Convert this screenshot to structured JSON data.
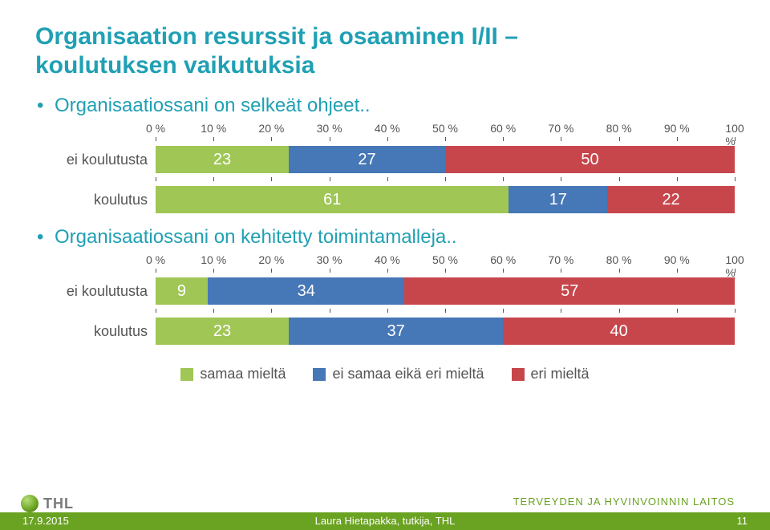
{
  "title_color": "#20a0b4",
  "bullet_color": "#20a0b4",
  "title_line1": "Organisaation resurssit ja osaaminen I/II –",
  "title_line2": "koulutuksen vaikutuksia",
  "chart1": {
    "bullet": "Organisaatiossani on selkeät ohjeet..",
    "ticks": [
      "0 %",
      "10 %",
      "20 %",
      "30 %",
      "40 %",
      "50 %",
      "60 %",
      "70 %",
      "80 %",
      "90 %",
      "100 %"
    ],
    "tick_positions": [
      0,
      10,
      20,
      30,
      40,
      50,
      60,
      70,
      80,
      90,
      100
    ],
    "rows": [
      {
        "label": "ei koulutusta",
        "segments": [
          {
            "value": 23,
            "color": "#a0c656"
          },
          {
            "value": 27,
            "color": "#4677b6"
          },
          {
            "value": 50,
            "color": "#c7464c"
          }
        ]
      },
      {
        "label": "koulutus",
        "segments": [
          {
            "value": 61,
            "color": "#a0c656"
          },
          {
            "value": 17,
            "color": "#4677b6"
          },
          {
            "value": 22,
            "color": "#c7464c"
          }
        ]
      }
    ]
  },
  "chart2": {
    "bullet": "Organisaatiossani on kehitetty toimintamalleja..",
    "ticks": [
      "0 %",
      "10 %",
      "20 %",
      "30 %",
      "40 %",
      "50 %",
      "60 %",
      "70 %",
      "80 %",
      "90 %",
      "100 %"
    ],
    "tick_positions": [
      0,
      10,
      20,
      30,
      40,
      50,
      60,
      70,
      80,
      90,
      100
    ],
    "rows": [
      {
        "label": "ei koulutusta",
        "segments": [
          {
            "value": 9,
            "color": "#a0c656"
          },
          {
            "value": 34,
            "color": "#4677b6"
          },
          {
            "value": 57,
            "color": "#c7464c"
          }
        ]
      },
      {
        "label": "koulutus",
        "segments": [
          {
            "value": 23,
            "color": "#a0c656"
          },
          {
            "value": 37,
            "color": "#4677b6"
          },
          {
            "value": 40,
            "color": "#c7464c"
          }
        ]
      }
    ]
  },
  "legend": [
    {
      "label": "samaa mieltä",
      "color": "#a0c656"
    },
    {
      "label": "ei samaa eikä eri mieltä",
      "color": "#4677b6"
    },
    {
      "label": "eri mieltä",
      "color": "#c7464c"
    }
  ],
  "footer": {
    "logo_text": "THL",
    "right_text": "TERVEYDEN JA HYVINVOINNIN LAITOS",
    "date": "17.9.2015",
    "center": "Laura Hietapakka, tutkija, THL",
    "page": "11",
    "bar_color": "#6aa221"
  }
}
